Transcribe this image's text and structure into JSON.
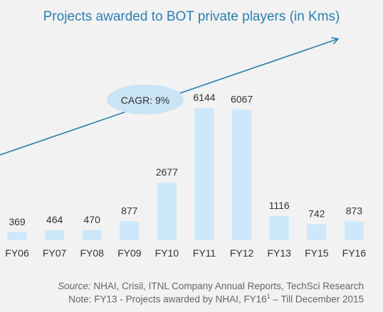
{
  "chart_data": {
    "type": "bar",
    "title": "Projects awarded to BOT private players (in Kms)",
    "categories": [
      "FY06",
      "FY07",
      "FY08",
      "FY09",
      "FY10",
      "FY11",
      "FY12",
      "FY13",
      "FY15",
      "FY16"
    ],
    "values": [
      369,
      464,
      470,
      877,
      2677,
      6144,
      6067,
      1116,
      742,
      873
    ],
    "data_labels": [
      "369",
      "464",
      "470",
      "877",
      "2677",
      "6144",
      "6067",
      "1116",
      "742",
      "873"
    ],
    "ylim": [
      0,
      6144
    ],
    "grid": false,
    "annotation": "CAGR: 9%",
    "colors": {
      "bar": "#cce8fa",
      "trend_arrow": "#2a7fb0",
      "cagr_bubble": "#c9e4f4",
      "title": "#2a7fb0"
    }
  },
  "footer": {
    "source_label": "Source:",
    "source_text": " NHAI, Crisil, ITNL Company Annual Reports, TechSci Research",
    "note_prefix": "Note: FY13 - Projects awarded by NHAI, FY16",
    "note_sup": "1",
    "note_suffix": " – Till December 2015"
  }
}
